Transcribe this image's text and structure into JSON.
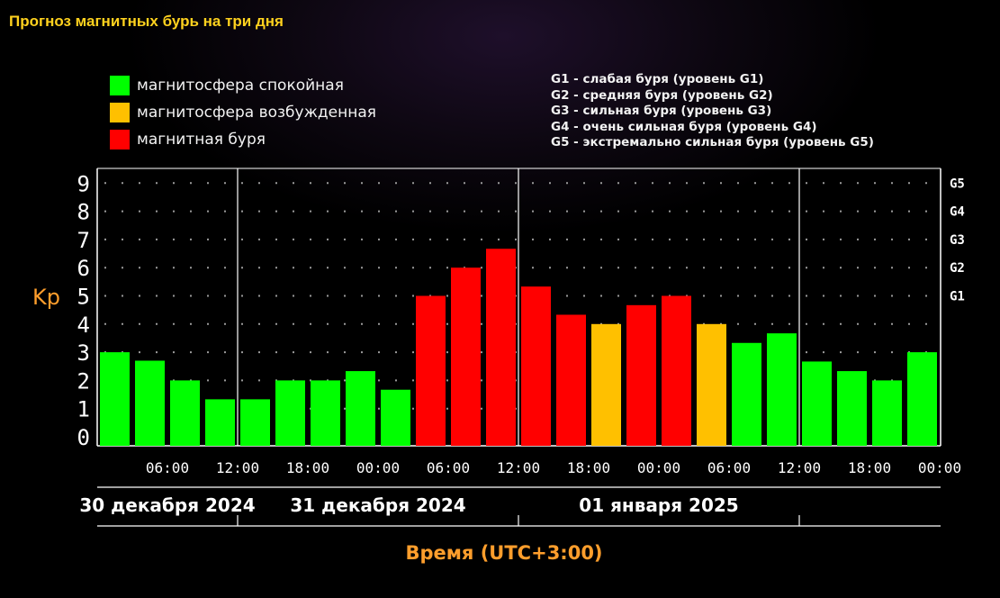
{
  "page": {
    "title": "Прогноз магнитных бурь на три дня"
  },
  "legend": {
    "status": [
      {
        "label": "магнитосфера спокойная",
        "color": "#00ff00"
      },
      {
        "label": "магнитосфера возбужденная",
        "color": "#ffc000"
      },
      {
        "label": "магнитная буря",
        "color": "#ff0000"
      }
    ],
    "levels": [
      "G1 - слабая буря (уровень G1)",
      "G2 - средняя буря (уровень G2)",
      "G3 - сильная буря (уровень G3)",
      "G4 - очень сильная буря (уровень G4)",
      "G5 - экстремально сильная буря (уровень G5)"
    ]
  },
  "chart_data": {
    "type": "bar",
    "title": "Прогноз магнитных бурь на три дня",
    "ylabel": "Kp",
    "xlabel": "Время (UTC+3:00)",
    "ylim": [
      0,
      9
    ],
    "yticks": [
      "0",
      "1",
      "2",
      "3",
      "4",
      "5",
      "6",
      "7",
      "8",
      "9"
    ],
    "right_axis_ticks": [
      {
        "label": "G1",
        "value": 5
      },
      {
        "label": "G2",
        "value": 6
      },
      {
        "label": "G3",
        "value": 7
      },
      {
        "label": "G4",
        "value": 8
      },
      {
        "label": "G5",
        "value": 9
      }
    ],
    "xtick_labels": [
      "06:00",
      "12:00",
      "18:00",
      "00:00",
      "06:00",
      "12:00",
      "18:00",
      "00:00",
      "06:00",
      "12:00",
      "18:00",
      "00:00"
    ],
    "days": [
      "30 декабря 2024",
      "31 декабря 2024",
      "01 января 2025"
    ],
    "grid": true,
    "legend_position": "top",
    "values": [
      3.0,
      2.7,
      2.0,
      1.33,
      1.33,
      2.0,
      2.0,
      2.33,
      1.67,
      5.0,
      6.0,
      6.67,
      5.33,
      4.33,
      4.0,
      4.67,
      5.0,
      4.0,
      3.33,
      3.67,
      2.67,
      2.33,
      2.0,
      3.0
    ],
    "levels": [
      "quiet",
      "quiet",
      "quiet",
      "quiet",
      "quiet",
      "quiet",
      "quiet",
      "quiet",
      "quiet",
      "storm",
      "storm",
      "storm",
      "storm",
      "storm",
      "active",
      "storm",
      "storm",
      "active",
      "quiet",
      "quiet",
      "quiet",
      "quiet",
      "quiet",
      "quiet"
    ],
    "level_colors": {
      "quiet": "#00ff00",
      "active": "#ffc000",
      "storm": "#ff0000"
    },
    "colors": {
      "axis": "#ffffff",
      "axis_title": "#ff9e2c",
      "grid_dot": "#9a9a9a"
    }
  }
}
